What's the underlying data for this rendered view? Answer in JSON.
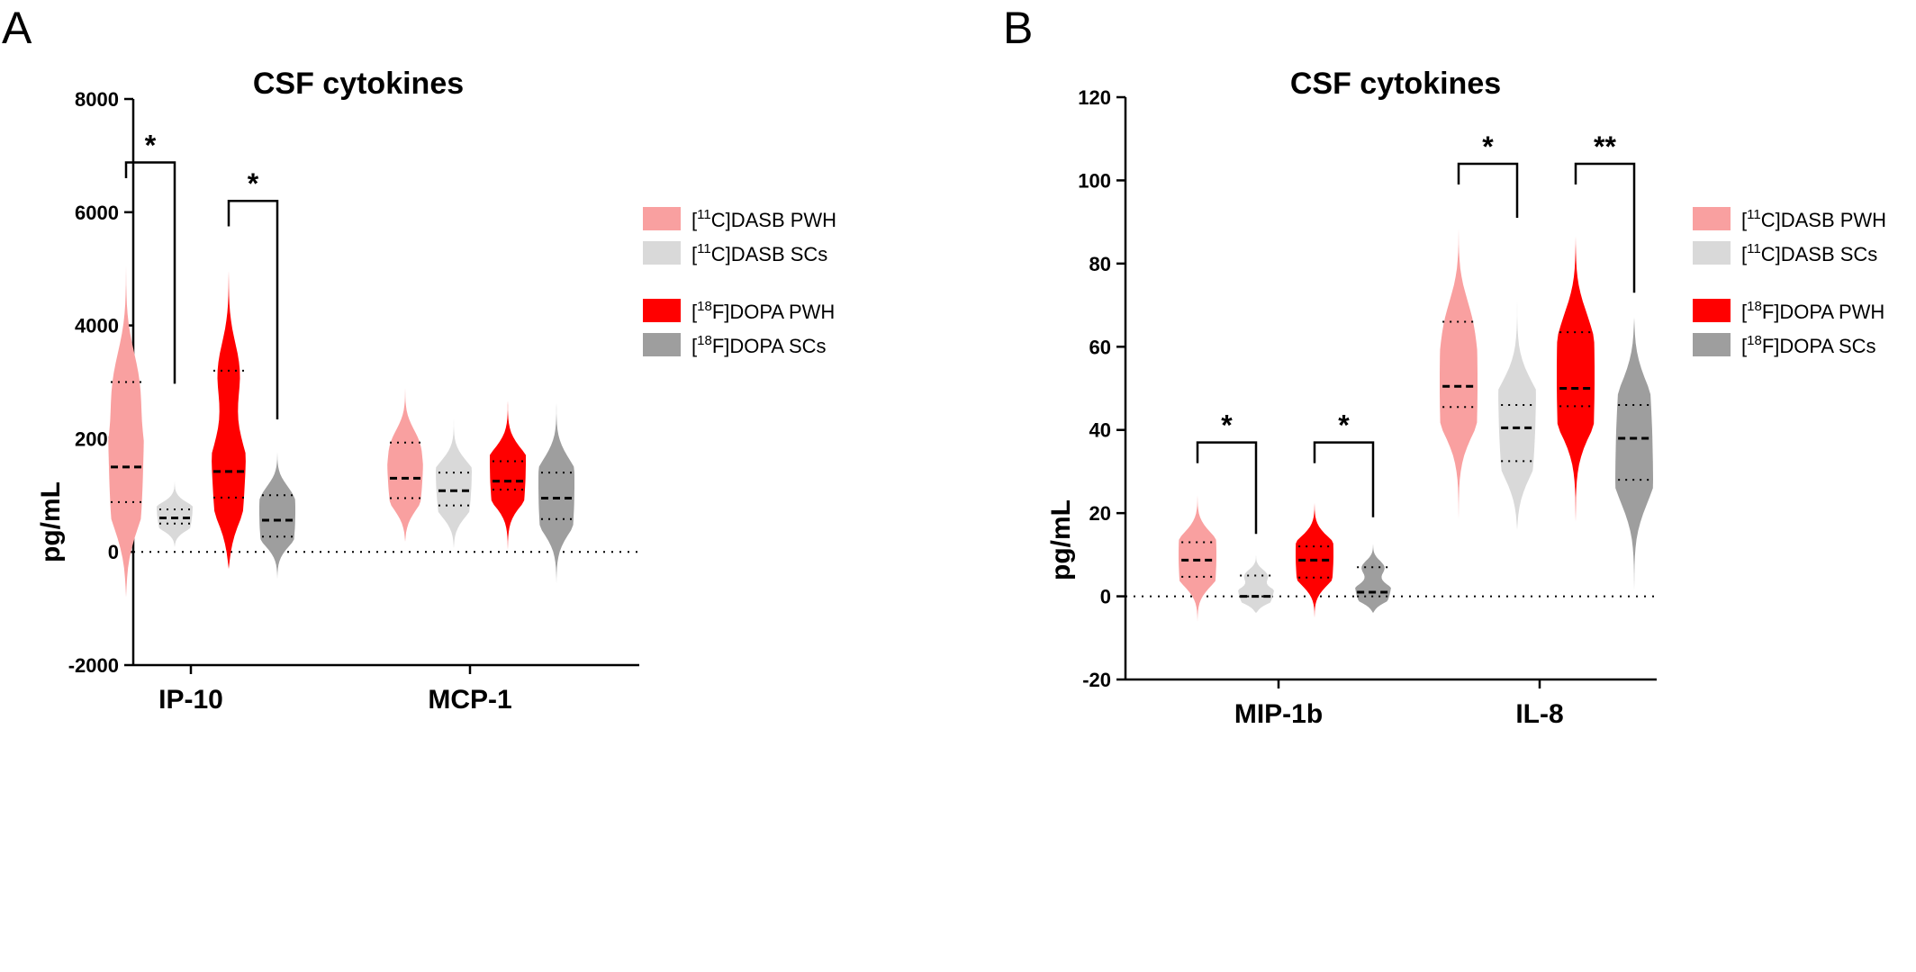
{
  "colors": {
    "dasb_pwh": "#f9a0a0",
    "dasb_sc": "#d9d9d9",
    "dopa_pwh": "#ff0000",
    "dopa_sc": "#9e9e9e"
  },
  "chart_data": [
    {
      "panel": "A",
      "type": "violin",
      "title": "CSF cytokines",
      "ylabel": "pg/mL",
      "ylim": [
        -2000,
        8000
      ],
      "yticks": [
        -2000,
        0,
        2000,
        4000,
        6000,
        8000
      ],
      "zero_line": "dotted",
      "legend": [
        {
          "pre": "[",
          "sup": "11",
          "post": "C]DASB PWH",
          "color_key": "dasb_pwh"
        },
        {
          "pre": "[",
          "sup": "11",
          "post": "C]DASB SCs",
          "color_key": "dasb_sc"
        },
        {
          "pre": "[",
          "sup": "18",
          "post": "F]DOPA PWH",
          "color_key": "dopa_pwh"
        },
        {
          "pre": "[",
          "sup": "18",
          "post": "F]DOPA SCs",
          "color_key": "dopa_sc"
        }
      ],
      "categories": [
        {
          "name": "IP-10",
          "violins": [
            {
              "group": "dasb_pwh",
              "min": -800,
              "max": 6100,
              "median": 1500,
              "q1": 880,
              "q3": 3000
            },
            {
              "group": "dasb_sc",
              "min": 80,
              "max": 1600,
              "median": 600,
              "q1": 500,
              "q3": 750
            },
            {
              "group": "dopa_pwh",
              "min": -300,
              "max": 5550,
              "median": 1420,
              "q1": 960,
              "q3": 3200
            },
            {
              "group": "dopa_sc",
              "min": -550,
              "max": 2020,
              "median": 560,
              "q1": 270,
              "q3": 1000
            }
          ]
        },
        {
          "name": "MCP-1",
          "violins": [
            {
              "group": "dasb_pwh",
              "min": 180,
              "max": 3380,
              "median": 1300,
              "q1": 950,
              "q3": 1930
            },
            {
              "group": "dasb_sc",
              "min": 60,
              "max": 2930,
              "median": 1080,
              "q1": 820,
              "q3": 1400
            },
            {
              "group": "dopa_pwh",
              "min": 30,
              "max": 3230,
              "median": 1250,
              "q1": 1100,
              "q3": 1600
            },
            {
              "group": "dopa_sc",
              "min": -650,
              "max": 3100,
              "median": 950,
              "q1": 580,
              "q3": 1400
            }
          ]
        }
      ],
      "significance": [
        {
          "label": "*",
          "from": [
            0,
            0
          ],
          "to": [
            0,
            1
          ],
          "y": 6880,
          "left_end": 6600,
          "right_end": 2970
        },
        {
          "label": "*",
          "from": [
            0,
            2
          ],
          "to": [
            0,
            3
          ],
          "y": 6200,
          "left_end": 5750,
          "right_end": 2340
        }
      ]
    },
    {
      "panel": "B",
      "type": "violin",
      "title": "CSF cytokines",
      "ylabel": "pg/mL",
      "ylim": [
        -20,
        120
      ],
      "yticks": [
        -20,
        0,
        20,
        40,
        60,
        80,
        100,
        120
      ],
      "zero_line": "dotted",
      "legend": [
        {
          "pre": "[",
          "sup": "11",
          "post": "C]DASB PWH",
          "color_key": "dasb_pwh"
        },
        {
          "pre": "[",
          "sup": "11",
          "post": "C]DASB SCs",
          "color_key": "dasb_sc"
        },
        {
          "pre": "[",
          "sup": "18",
          "post": "F]DOPA PWH",
          "color_key": "dopa_pwh"
        },
        {
          "pre": "[",
          "sup": "18",
          "post": "F]DOPA SCs",
          "color_key": "dopa_sc"
        }
      ],
      "categories": [
        {
          "name": "MIP-1b",
          "violins": [
            {
              "group": "dasb_pwh",
              "min": -8,
              "max": 28,
              "median": 8.7,
              "q1": 4.7,
              "q3": 13
            },
            {
              "group": "dasb_sc",
              "min": -4,
              "max": 12.5,
              "median": 0,
              "q1": 0,
              "q3": 5
            },
            {
              "group": "dopa_pwh",
              "min": -6,
              "max": 26.5,
              "median": 8.7,
              "q1": 4.5,
              "q3": 12
            },
            {
              "group": "dopa_sc",
              "min": -4,
              "max": 14.5,
              "median": 1,
              "q1": 0,
              "q3": 7
            }
          ]
        },
        {
          "name": "IL-8",
          "violins": [
            {
              "group": "dasb_pwh",
              "min": 12.5,
              "max": 90.5,
              "median": 50.5,
              "q1": 45.5,
              "q3": 66
            },
            {
              "group": "dasb_sc",
              "min": 16,
              "max": 87,
              "median": 40.5,
              "q1": 32.5,
              "q3": 46
            },
            {
              "group": "dopa_pwh",
              "min": 14,
              "max": 92.5,
              "median": 50,
              "q1": 45.7,
              "q3": 63.5
            },
            {
              "group": "dopa_sc",
              "min": -15,
              "max": 67,
              "median": 38,
              "q1": 28,
              "q3": 46
            }
          ]
        }
      ],
      "significance": [
        {
          "label": "*",
          "from": [
            0,
            0
          ],
          "to": [
            0,
            1
          ],
          "y": 37,
          "left_end": 32,
          "right_end": 15
        },
        {
          "label": "*",
          "from": [
            0,
            2
          ],
          "to": [
            0,
            3
          ],
          "y": 37,
          "left_end": 32,
          "right_end": 19
        },
        {
          "label": "*",
          "from": [
            1,
            0
          ],
          "to": [
            1,
            1
          ],
          "y": 104,
          "left_end": 99,
          "right_end": 91
        },
        {
          "label": "**",
          "from": [
            1,
            2
          ],
          "to": [
            1,
            3
          ],
          "y": 104,
          "left_end": 99,
          "right_end": 73
        }
      ]
    }
  ]
}
